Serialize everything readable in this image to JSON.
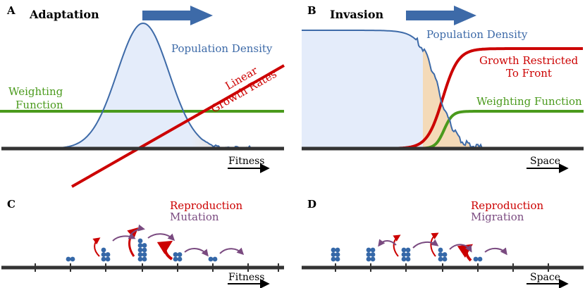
{
  "panels": {
    "a": {
      "letter": "A",
      "title": "Adaptation",
      "density_label": "Population Density",
      "growth_label_line1": "Linear",
      "growth_label_line2": "Growth Rates",
      "weighting_label_line1": "Weighting",
      "weighting_label_line2": "Function",
      "axis_label": "Fitness"
    },
    "b": {
      "letter": "B",
      "title": "Invasion",
      "density_label": "Population Density",
      "growth_label_line1": "Growth Restricted",
      "growth_label_line2": "To Front",
      "weighting_label": "Weighting Function",
      "axis_label": "Space"
    },
    "c": {
      "letter": "C",
      "legend_reproduction": "Reproduction",
      "legend_mutation": "Mutation",
      "axis_label": "Fitness",
      "stack_counts": [
        0,
        2,
        5,
        9,
        4,
        2,
        0,
        0
      ]
    },
    "d": {
      "letter": "D",
      "legend_reproduction": "Reproduction",
      "legend_migration": "Migration",
      "axis_label": "Space",
      "stack_counts": [
        6,
        6,
        6,
        5,
        2,
        0,
        0
      ]
    }
  },
  "colors": {
    "density": "#3d6aa8",
    "density_fill": "#e4ecfa",
    "growth": "#cc0000",
    "weighting": "#4a9a1c",
    "axis": "#333333",
    "dot": "#3568a8",
    "migration": "#7a4a80",
    "front_fill": "#f5d8b0"
  }
}
